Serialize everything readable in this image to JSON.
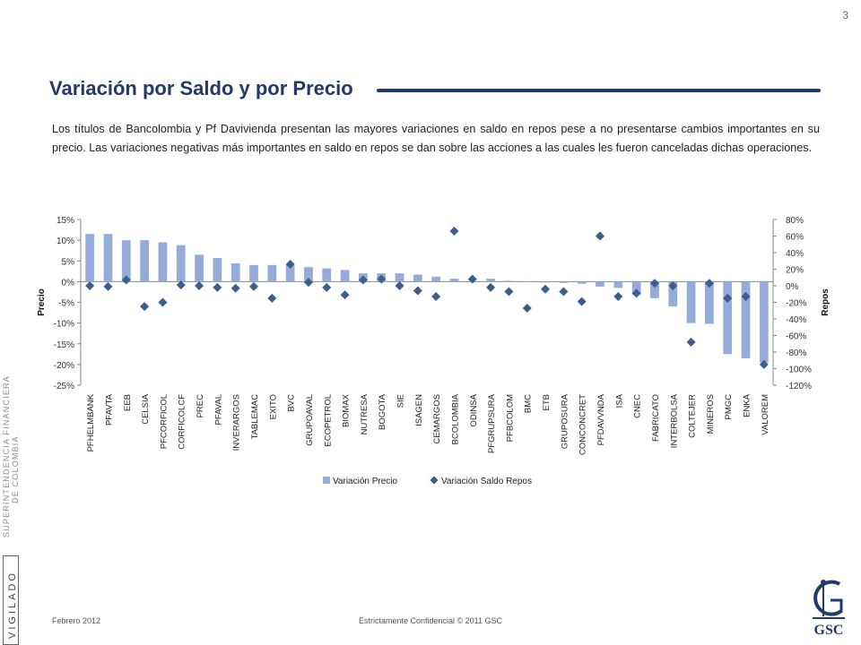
{
  "page_number": "3",
  "title": "Variación por Saldo y por Precio",
  "body_text": "Los títulos de Bancolombia y Pf Davivienda presentan las mayores variaciones en saldo en repos pese a no presentarse cambios importantes en su precio. Las variaciones negativas más importantes en saldo en repos se dan sobre las acciones a las cuales les fueron canceladas dichas operaciones.",
  "watermark": {
    "line1": "SUPERINTENDENCIA FINANCIERA",
    "line2": "DE COLOMBIA",
    "vigilado": "VIGILADO"
  },
  "footer": {
    "date": "Febrero 2012",
    "confidential": "Estrictamente Confidencial  © 2011 GSC"
  },
  "logo": {
    "text": "GSC",
    "color": "#1f3a6b"
  },
  "chart_data": {
    "type": "bar",
    "ylabel": "Precio",
    "y2label": "Repos",
    "ylim": [
      -0.25,
      0.15
    ],
    "y_ticks": [
      0.15,
      0.1,
      0.05,
      0,
      -0.05,
      -0.1,
      -0.15,
      -0.2,
      -0.25
    ],
    "y_tick_labels": [
      "15%",
      "10%",
      "5%",
      "0%",
      "-5%",
      "-10%",
      "-15%",
      "-20%",
      "-25%"
    ],
    "y2lim": [
      -1.2,
      0.8
    ],
    "y2_ticks": [
      0.8,
      0.6,
      0.4,
      0.2,
      0,
      -0.2,
      -0.4,
      -0.6,
      -0.8,
      -1.0,
      -1.2
    ],
    "y2_tick_labels": [
      "80%",
      "60%",
      "40%",
      "20%",
      "0%",
      "-20%",
      "-40%",
      "-60%",
      "-80%",
      "-100%",
      "-120%"
    ],
    "legend_position": "bottom",
    "colors": {
      "bars": "#95abd8",
      "markers": "#3b5e8c",
      "axis": "#888888"
    },
    "categories": [
      "PFHELMBANK",
      "PFAVTA",
      "EEB",
      "CELSIA",
      "PFCORFICOL",
      "CORFICOLCF",
      "PREC",
      "PFAVAL",
      "INVERARGOS",
      "TABLEMAC",
      "EXITO",
      "BVC",
      "GRUPOAVAL",
      "ECOPETROL",
      "BIOMAX",
      "NUTRESA",
      "BOGOTA",
      "SIE",
      "ISAGEN",
      "CEMARGOS",
      "BCOLOMBIA",
      "ODINSA",
      "PFGRUPSURA",
      "PFBCOLOM",
      "BMC",
      "ETB",
      "GRUPOSURA",
      "CONCONCRET",
      "PFDAVVNDA",
      "ISA",
      "CNEC",
      "FABRICATO",
      "INTERBOLSA",
      "COLTEJER",
      "MINEROS",
      "PMGC",
      "ENKA",
      "VALOREM"
    ],
    "series": [
      {
        "name": "Variación Precio",
        "kind": "bar",
        "values": [
          0.115,
          0.115,
          0.1,
          0.1,
          0.095,
          0.088,
          0.065,
          0.057,
          0.044,
          0.04,
          0.04,
          0.04,
          0.035,
          0.032,
          0.028,
          0.02,
          0.02,
          0.02,
          0.017,
          0.012,
          0.007,
          0.0,
          0.007,
          0.002,
          0.0,
          -0.002,
          -0.003,
          -0.005,
          -0.012,
          -0.015,
          -0.032,
          -0.04,
          -0.06,
          -0.1,
          -0.102,
          -0.175,
          -0.185,
          -0.195
        ]
      },
      {
        "name": "Variación Saldo Repos",
        "kind": "scatter",
        "values": [
          0.0,
          -0.01,
          0.07,
          -0.25,
          -0.2,
          0.01,
          0.0,
          -0.02,
          -0.03,
          -0.01,
          -0.15,
          0.26,
          0.04,
          -0.02,
          -0.11,
          0.07,
          0.08,
          0.0,
          -0.06,
          -0.13,
          0.66,
          0.08,
          -0.02,
          -0.07,
          -0.27,
          -0.04,
          -0.07,
          -0.19,
          0.6,
          -0.13,
          -0.09,
          0.03,
          0.0,
          -0.68,
          0.03,
          -0.15,
          -0.13,
          -0.95
        ]
      }
    ]
  }
}
